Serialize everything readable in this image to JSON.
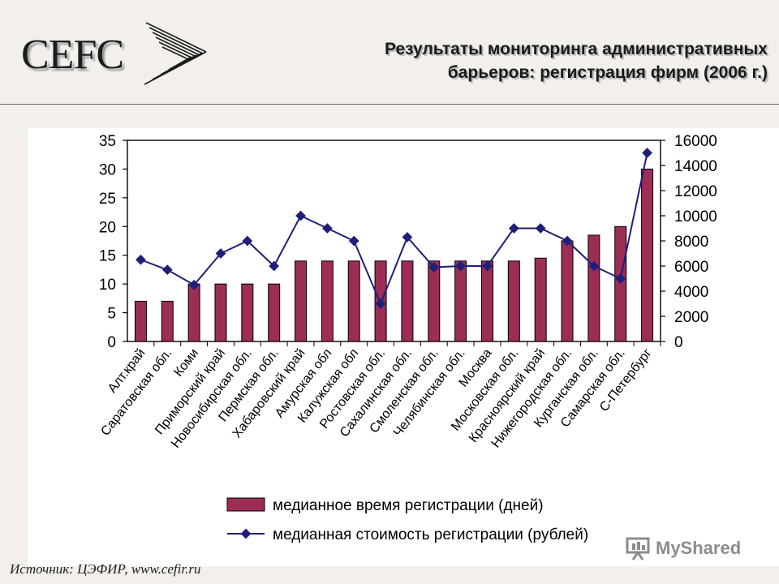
{
  "header": {
    "logo": "CEFC",
    "title_line1": "Результаты мониторинга административных",
    "title_line2": "барьеров: регистрация фирм (2006 г.)"
  },
  "footer": {
    "source": "Источник: ЦЭФИР, www.cefir.ru",
    "watermark": "MyShared"
  },
  "colors": {
    "bar": "#9b2d56",
    "line": "#1f1f7a",
    "background": "#f3f0ec"
  },
  "chart_data": {
    "type": "bar",
    "categories": [
      "Алт.край",
      "Саратовская обл.",
      "Коми",
      "Приморский край",
      "Новосибирская обл.",
      "Пермская обл.",
      "Хабаровский край",
      "Амурская обл",
      "Калужская обл",
      "Ростовская обл.",
      "Сахалинская обл.",
      "Смоленская обл.",
      "Челябинская обл.",
      "Москва",
      "Московская обл.",
      "Красноярский край",
      "Нижегородская обл.",
      "Курганская обл.",
      "Самарская обл.",
      "С-Петербург"
    ],
    "series": [
      {
        "name": "медианное время регистрации (дней)",
        "type": "bar",
        "axis": "left",
        "values": [
          7,
          7,
          10,
          10,
          10,
          10,
          14,
          14,
          14,
          14,
          14,
          14,
          14,
          14,
          14,
          14.5,
          17.5,
          18.5,
          20,
          30
        ]
      },
      {
        "name": "медианная стоимость регистрации (рублей)",
        "type": "line",
        "axis": "right",
        "values": [
          6500,
          5700,
          4500,
          7000,
          8000,
          6000,
          10000,
          9000,
          8000,
          3000,
          8300,
          5900,
          6000,
          6000,
          9000,
          9000,
          8000,
          6000,
          5000,
          15000
        ]
      }
    ],
    "left_axis": {
      "ylim": [
        0,
        35
      ],
      "ticks": [
        "0",
        "5",
        "10",
        "15",
        "20",
        "25",
        "30",
        "35"
      ]
    },
    "right_axis": {
      "ylim": [
        0,
        16000
      ],
      "ticks": [
        "0",
        "2000",
        "4000",
        "6000",
        "8000",
        "10000",
        "12000",
        "14000",
        "16000"
      ]
    },
    "grid": false,
    "legend_position": "bottom"
  }
}
